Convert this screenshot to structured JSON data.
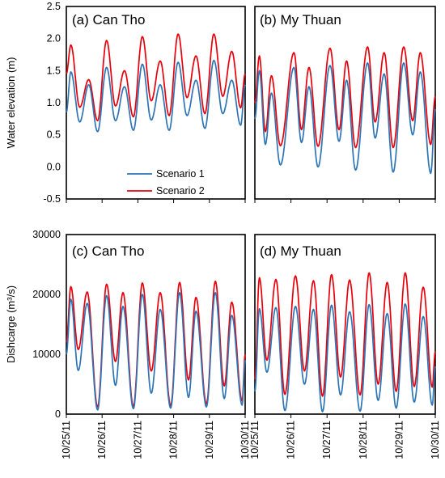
{
  "colors": {
    "scenario1": "#2E75B6",
    "scenario2": "#E8000B",
    "frame": "#000000"
  },
  "x_tick_labels": [
    "10/25/11",
    "10/26/11",
    "10/27/11",
    "10/28/11",
    "10/29/11",
    "10/30/11"
  ],
  "legend": {
    "entries": [
      "Scenario 1",
      "Scenario 2"
    ],
    "placement": "lower-center of panel (a)"
  },
  "chart_data": [
    {
      "type": "line",
      "panel": "a",
      "title": "(a) Can Tho",
      "ylabel": "Water elevation (m)",
      "ylim": [
        -0.5,
        2.5
      ],
      "yticks": [
        "-0.5",
        "0.0",
        "0.5",
        "1.0",
        "1.5",
        "2.0",
        "2.5"
      ],
      "xlim": [
        "10/25/11",
        "10/30/11"
      ],
      "series": [
        {
          "name": "Scenario 1",
          "extrema": [
            [
              "10/25/11 00:00",
              0.85
            ],
            [
              "10/25/11 03:00",
              1.48
            ],
            [
              "10/25/11 09:00",
              0.7
            ],
            [
              "10/25/11 15:00",
              1.28
            ],
            [
              "10/25/11 21:00",
              0.55
            ],
            [
              "10/26/11 03:00",
              1.55
            ],
            [
              "10/26/11 09:00",
              0.72
            ],
            [
              "10/26/11 15:00",
              1.25
            ],
            [
              "10/26/11 21:00",
              0.57
            ],
            [
              "10/27/11 03:00",
              1.6
            ],
            [
              "10/27/11 09:00",
              0.73
            ],
            [
              "10/27/11 15:00",
              1.28
            ],
            [
              "10/27/11 21:00",
              0.57
            ],
            [
              "10/28/11 03:00",
              1.63
            ],
            [
              "10/28/11 09:00",
              0.8
            ],
            [
              "10/28/11 15:00",
              1.35
            ],
            [
              "10/28/11 21:00",
              0.6
            ],
            [
              "10/29/11 03:00",
              1.66
            ],
            [
              "10/29/11 09:00",
              0.83
            ],
            [
              "10/29/11 15:00",
              1.35
            ],
            [
              "10/29/11 21:00",
              0.65
            ],
            [
              "10/30/11 00:00",
              1.28
            ]
          ]
        },
        {
          "name": "Scenario 2",
          "extrema": [
            [
              "10/25/11 00:00",
              1.45
            ],
            [
              "10/25/11 03:00",
              1.9
            ],
            [
              "10/25/11 09:00",
              0.93
            ],
            [
              "10/25/11 15:00",
              1.36
            ],
            [
              "10/25/11 21:00",
              0.72
            ],
            [
              "10/26/11 03:00",
              1.97
            ],
            [
              "10/26/11 09:00",
              0.95
            ],
            [
              "10/26/11 15:00",
              1.5
            ],
            [
              "10/26/11 21:00",
              0.78
            ],
            [
              "10/27/11 03:00",
              2.03
            ],
            [
              "10/27/11 09:00",
              1.03
            ],
            [
              "10/27/11 15:00",
              1.65
            ],
            [
              "10/27/11 21:00",
              0.8
            ],
            [
              "10/28/11 03:00",
              2.07
            ],
            [
              "10/28/11 09:00",
              1.08
            ],
            [
              "10/28/11 15:00",
              1.73
            ],
            [
              "10/28/11 21:00",
              0.83
            ],
            [
              "10/29/11 03:00",
              2.07
            ],
            [
              "10/29/11 09:00",
              1.1
            ],
            [
              "10/29/11 15:00",
              1.8
            ],
            [
              "10/29/11 21:00",
              0.92
            ],
            [
              "10/30/11 00:00",
              1.45
            ]
          ]
        }
      ]
    },
    {
      "type": "line",
      "panel": "b",
      "title": "(b) My Thuan",
      "ylim": [
        -0.5,
        2.5
      ],
      "xlim": [
        "10/25/11",
        "10/30/11"
      ],
      "series": [
        {
          "name": "Scenario 1",
          "extrema": [
            [
              "10/25/11 00:00",
              0.75
            ],
            [
              "10/25/11 03:00",
              1.5
            ],
            [
              "10/25/11 07:00",
              0.35
            ],
            [
              "10/25/11 11:00",
              1.15
            ],
            [
              "10/25/11 17:00",
              0.03
            ],
            [
              "10/26/11 02:00",
              1.55
            ],
            [
              "10/26/11 07:00",
              0.38
            ],
            [
              "10/26/11 12:00",
              1.25
            ],
            [
              "10/26/11 18:00",
              0.0
            ],
            [
              "10/27/11 02:00",
              1.58
            ],
            [
              "10/27/11 08:00",
              0.4
            ],
            [
              "10/27/11 13:00",
              1.35
            ],
            [
              "10/27/11 19:00",
              -0.05
            ],
            [
              "10/28/11 03:00",
              1.62
            ],
            [
              "10/28/11 08:00",
              0.45
            ],
            [
              "10/28/11 14:00",
              1.45
            ],
            [
              "10/28/11 20:00",
              -0.08
            ],
            [
              "10/29/11 03:00",
              1.62
            ],
            [
              "10/29/11 09:00",
              0.5
            ],
            [
              "10/29/11 14:00",
              1.48
            ],
            [
              "10/29/11 21:00",
              -0.1
            ],
            [
              "10/30/11 00:00",
              0.9
            ]
          ]
        },
        {
          "name": "Scenario 2",
          "extrema": [
            [
              "10/25/11 00:00",
              1.0
            ],
            [
              "10/25/11 03:00",
              1.73
            ],
            [
              "10/25/11 07:00",
              0.55
            ],
            [
              "10/25/11 11:00",
              1.42
            ],
            [
              "10/25/11 17:00",
              0.33
            ],
            [
              "10/26/11 02:00",
              1.78
            ],
            [
              "10/26/11 07:00",
              0.58
            ],
            [
              "10/26/11 12:00",
              1.55
            ],
            [
              "10/26/11 18:00",
              0.32
            ],
            [
              "10/27/11 02:00",
              1.85
            ],
            [
              "10/27/11 08:00",
              0.58
            ],
            [
              "10/27/11 13:00",
              1.65
            ],
            [
              "10/27/11 19:00",
              0.3
            ],
            [
              "10/28/11 03:00",
              1.87
            ],
            [
              "10/28/11 08:00",
              0.7
            ],
            [
              "10/28/11 14:00",
              1.78
            ],
            [
              "10/28/11 20:00",
              0.3
            ],
            [
              "10/29/11 03:00",
              1.87
            ],
            [
              "10/29/11 09:00",
              0.72
            ],
            [
              "10/29/11 14:00",
              1.78
            ],
            [
              "10/29/11 21:00",
              0.35
            ],
            [
              "10/30/11 00:00",
              1.1
            ]
          ]
        }
      ]
    },
    {
      "type": "line",
      "panel": "c",
      "title": "(c) Can Tho",
      "ylabel": "Dishcarge (m³/s)",
      "ylim": [
        0,
        30000
      ],
      "yticks": [
        "0",
        "10000",
        "20000",
        "30000"
      ],
      "xlim": [
        "10/25/11",
        "10/30/11"
      ],
      "series": [
        {
          "name": "Scenario 1",
          "extrema": [
            [
              "10/25/11 00:00",
              10000
            ],
            [
              "10/25/11 03:00",
              19200
            ],
            [
              "10/25/11 08:00",
              7300
            ],
            [
              "10/25/11 14:00",
              18500
            ],
            [
              "10/25/11 21:00",
              700
            ],
            [
              "10/26/11 03:00",
              19800
            ],
            [
              "10/26/11 09:00",
              4800
            ],
            [
              "10/26/11 14:00",
              18000
            ],
            [
              "10/26/11 21:00",
              900
            ],
            [
              "10/27/11 03:00",
              20000
            ],
            [
              "10/27/11 09:00",
              3500
            ],
            [
              "10/27/11 15:00",
              17500
            ],
            [
              "10/27/11 22:00",
              1000
            ],
            [
              "10/28/11 04:00",
              20300
            ],
            [
              "10/28/11 10:00",
              2800
            ],
            [
              "10/28/11 15:00",
              17200
            ],
            [
              "10/28/11 22:00",
              1200
            ],
            [
              "10/29/11 04:00",
              20300
            ],
            [
              "10/29/11 10:00",
              2600
            ],
            [
              "10/29/11 15:00",
              16500
            ],
            [
              "10/29/11 22:00",
              1500
            ],
            [
              "10/30/11 00:00",
              9000
            ]
          ]
        },
        {
          "name": "Scenario 2",
          "extrema": [
            [
              "10/25/11 00:00",
              12000
            ],
            [
              "10/25/11 03:00",
              21300
            ],
            [
              "10/25/11 08:00",
              10800
            ],
            [
              "10/25/11 14:00",
              20400
            ],
            [
              "10/25/11 21:00",
              1200
            ],
            [
              "10/26/11 03:00",
              21700
            ],
            [
              "10/26/11 09:00",
              8800
            ],
            [
              "10/26/11 14:00",
              20300
            ],
            [
              "10/26/11 21:00",
              1300
            ],
            [
              "10/27/11 03:00",
              21900
            ],
            [
              "10/27/11 09:00",
              7200
            ],
            [
              "10/27/11 15:00",
              20300
            ],
            [
              "10/27/11 22:00",
              1400
            ],
            [
              "10/28/11 04:00",
              22000
            ],
            [
              "10/28/11 10:00",
              5700
            ],
            [
              "10/28/11 15:00",
              19500
            ],
            [
              "10/28/11 22:00",
              1700
            ],
            [
              "10/29/11 04:00",
              22200
            ],
            [
              "10/29/11 10:00",
              4700
            ],
            [
              "10/29/11 15:00",
              18700
            ],
            [
              "10/29/11 22:00",
              2200
            ],
            [
              "10/30/11 00:00",
              10000
            ]
          ]
        }
      ]
    },
    {
      "type": "line",
      "panel": "d",
      "title": "(d) My Thuan",
      "ylim": [
        0,
        30000
      ],
      "xlim": [
        "10/25/11",
        "10/30/11"
      ],
      "series": [
        {
          "name": "Scenario 1",
          "extrema": [
            [
              "10/25/11 00:00",
              3800
            ],
            [
              "10/25/11 03:00",
              17600
            ],
            [
              "10/25/11 08:00",
              7000
            ],
            [
              "10/25/11 14:00",
              17800
            ],
            [
              "10/25/11 20:00",
              600
            ],
            [
              "10/26/11 03:00",
              18000
            ],
            [
              "10/26/11 09:00",
              5000
            ],
            [
              "10/26/11 15:00",
              17500
            ],
            [
              "10/26/11 21:00",
              400
            ],
            [
              "10/27/11 03:00",
              18200
            ],
            [
              "10/27/11 09:00",
              3200
            ],
            [
              "10/27/11 15:00",
              17100
            ],
            [
              "10/27/11 22:00",
              500
            ],
            [
              "10/28/11 04:00",
              18300
            ],
            [
              "10/28/11 10:00",
              2300
            ],
            [
              "10/28/11 16:00",
              16800
            ],
            [
              "10/28/11 22:00",
              1000
            ],
            [
              "10/29/11 04:00",
              18400
            ],
            [
              "10/29/11 10:00",
              2000
            ],
            [
              "10/29/11 16:00",
              16300
            ],
            [
              "10/29/11 22:00",
              1500
            ],
            [
              "10/30/11 00:00",
              8000
            ]
          ]
        },
        {
          "name": "Scenario 2",
          "extrema": [
            [
              "10/25/11 00:00",
              5800
            ],
            [
              "10/25/11 03:00",
              22800
            ],
            [
              "10/25/11 08:00",
              9000
            ],
            [
              "10/25/11 14:00",
              22500
            ],
            [
              "10/25/11 20:00",
              3300
            ],
            [
              "10/26/11 03:00",
              23100
            ],
            [
              "10/26/11 09:00",
              7200
            ],
            [
              "10/26/11 15:00",
              22300
            ],
            [
              "10/26/11 21:00",
              3000
            ],
            [
              "10/27/11 03:00",
              23300
            ],
            [
              "10/27/11 09:00",
              6200
            ],
            [
              "10/27/11 15:00",
              22400
            ],
            [
              "10/27/11 22:00",
              3200
            ],
            [
              "10/28/11 04:00",
              23600
            ],
            [
              "10/28/11 10:00",
              5000
            ],
            [
              "10/28/11 16:00",
              22000
            ],
            [
              "10/28/11 22:00",
              3800
            ],
            [
              "10/29/11 04:00",
              23600
            ],
            [
              "10/29/11 10:00",
              4600
            ],
            [
              "10/29/11 16:00",
              21200
            ],
            [
              "10/29/11 22:00",
              4500
            ],
            [
              "10/30/11 00:00",
              10500
            ]
          ]
        }
      ]
    }
  ]
}
